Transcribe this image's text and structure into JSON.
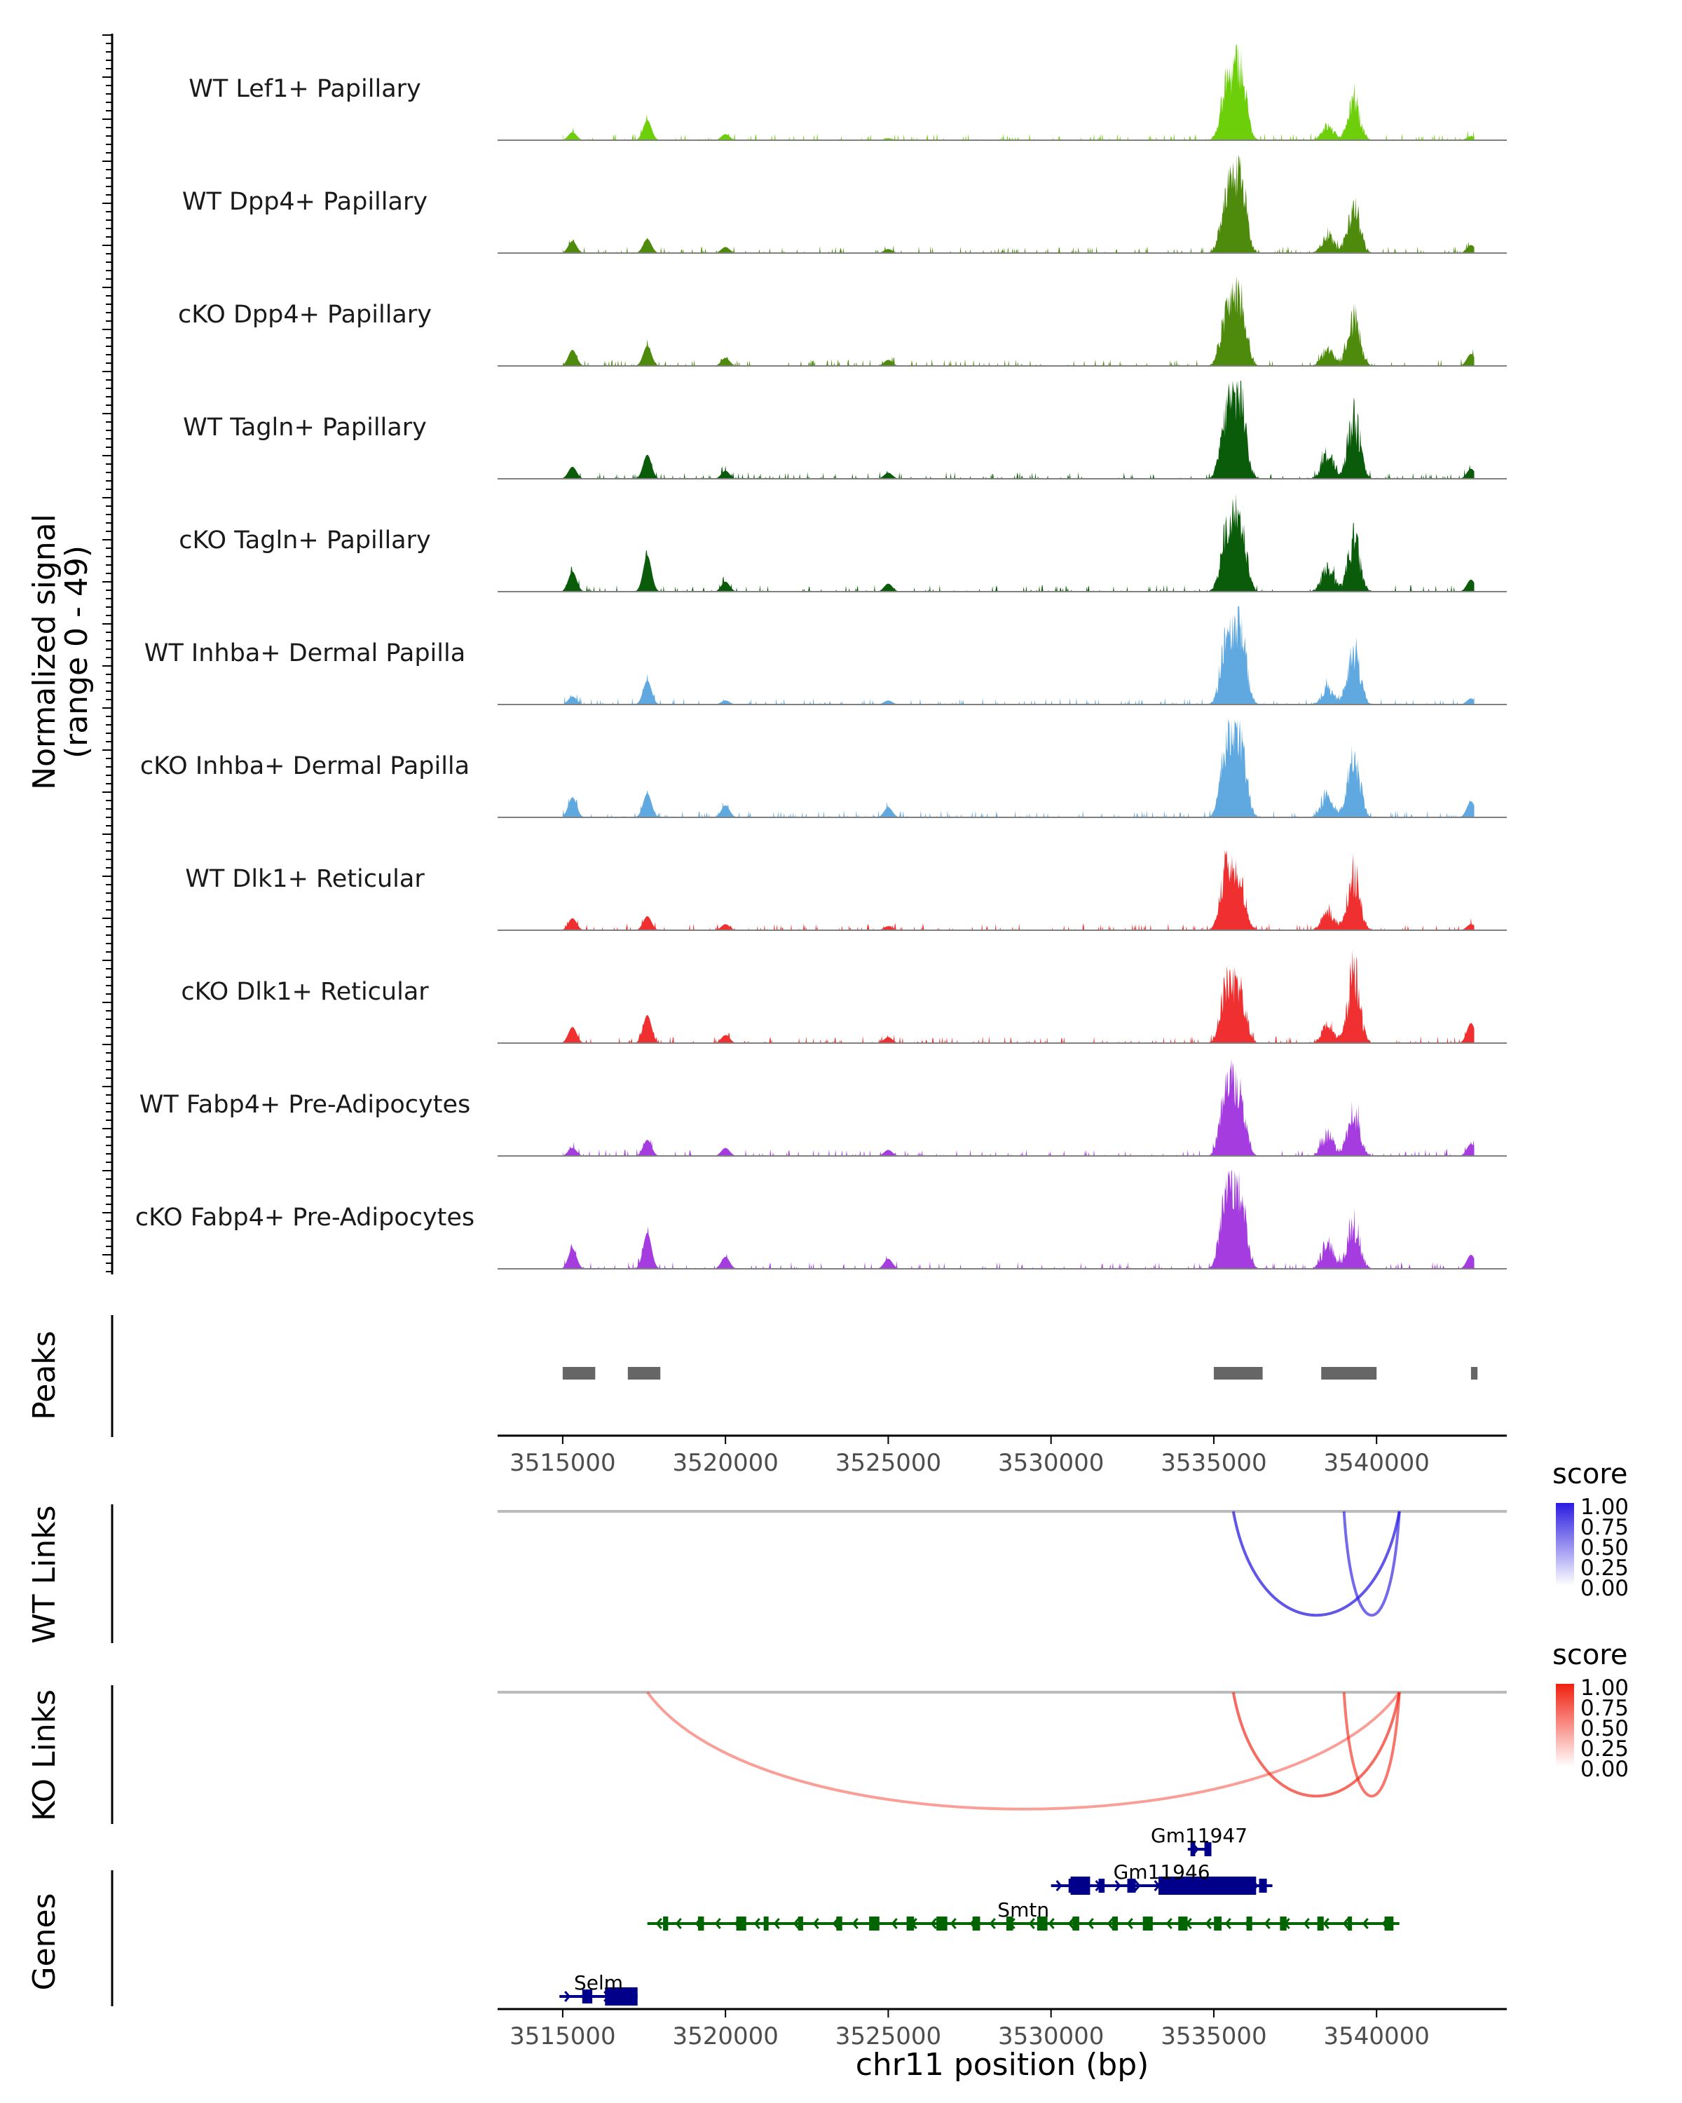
{
  "chart_data": {
    "type": "genome-browser",
    "coverage": {
      "ylabel": "Normalized signal",
      "ylabel_range": "(range 0 - 49)",
      "ylim": [
        0,
        49
      ],
      "x_range": [
        3513000,
        3544000
      ],
      "peak_regions": [
        [
          3515000,
          3516000
        ],
        [
          3517000,
          3518000
        ],
        [
          3535000,
          3536500
        ],
        [
          3538300,
          3540000
        ],
        [
          3542900,
          3543100
        ]
      ],
      "tracks": [
        {
          "label": "WT Lef1+ Papillary",
          "color": "#6ccf0a",
          "peak_heights": [
            4,
            10,
            3,
            1,
            30,
            42,
            8,
            22,
            2
          ]
        },
        {
          "label": "WT Dpp4+ Papillary",
          "color": "#4e8a0c",
          "peak_heights": [
            6,
            7,
            3,
            2,
            32,
            46,
            10,
            28,
            4
          ]
        },
        {
          "label": "cKO Dpp4+ Papillary",
          "color": "#4e8a0c",
          "peak_heights": [
            8,
            10,
            4,
            3,
            30,
            40,
            10,
            28,
            6
          ]
        },
        {
          "label": "WT Tagln+ Papillary",
          "color": "#0a5c0a",
          "peak_heights": [
            6,
            12,
            4,
            3,
            38,
            47,
            14,
            36,
            5
          ]
        },
        {
          "label": "cKO Tagln+ Papillary",
          "color": "#0a5c0a",
          "peak_heights": [
            10,
            18,
            5,
            4,
            34,
            44,
            14,
            30,
            6
          ]
        },
        {
          "label": "WT Inhba+ Dermal Papilla",
          "color": "#5fa8e0",
          "peak_heights": [
            4,
            12,
            2,
            2,
            36,
            44,
            10,
            32,
            3
          ]
        },
        {
          "label": "cKO Inhba+ Dermal Papilla",
          "color": "#5fa8e0",
          "peak_heights": [
            10,
            12,
            6,
            5,
            40,
            48,
            14,
            36,
            8
          ]
        },
        {
          "label": "WT Dlk1+ Reticular",
          "color": "#f03030",
          "peak_heights": [
            6,
            7,
            3,
            2,
            36,
            26,
            12,
            32,
            3
          ]
        },
        {
          "label": "cKO Dlk1+ Reticular",
          "color": "#f03030",
          "peak_heights": [
            8,
            14,
            4,
            3,
            32,
            30,
            10,
            40,
            10
          ]
        },
        {
          "label": "WT Fabp4+ Pre-Adipocytes",
          "color": "#a43ce0",
          "peak_heights": [
            4,
            8,
            4,
            3,
            40,
            32,
            12,
            26,
            6
          ]
        },
        {
          "label": "cKO Fabp4+ Pre-Adipocytes",
          "color": "#a43ce0",
          "peak_heights": [
            10,
            18,
            6,
            5,
            48,
            40,
            14,
            26,
            7
          ]
        }
      ]
    },
    "peaks_track": {
      "label": "Peaks",
      "color": "#666666"
    },
    "x_axis": {
      "ticks": [
        3515000,
        3520000,
        3525000,
        3530000,
        3535000,
        3540000
      ],
      "tick_labels": [
        "3515000",
        "3520000",
        "3525000",
        "3530000",
        "3535000",
        "3540000"
      ],
      "xlabel": "chr11 position (bp)"
    },
    "links": [
      {
        "label": "WT Links",
        "legend_title": "score",
        "legend_ticks": [
          "1.00",
          "0.75",
          "0.50",
          "0.25",
          "0.00"
        ],
        "color_high": "#2b1ce0",
        "arcs": [
          {
            "start": 3535600,
            "end": 3540700,
            "score": 0.55,
            "depth": 0.8
          },
          {
            "start": 3539000,
            "end": 3540700,
            "score": 0.45,
            "depth": 0.8
          }
        ]
      },
      {
        "label": "KO Links",
        "legend_title": "score",
        "legend_ticks": [
          "1.00",
          "0.75",
          "0.50",
          "0.25",
          "0.00"
        ],
        "color_high": "#f02010",
        "arcs": [
          {
            "start": 3517600,
            "end": 3540700,
            "score": 0.2,
            "depth": 0.9
          },
          {
            "start": 3535600,
            "end": 3540700,
            "score": 0.45,
            "depth": 0.8
          },
          {
            "start": 3539000,
            "end": 3540700,
            "score": 0.4,
            "depth": 0.8
          }
        ]
      }
    ],
    "genes": {
      "label": "Genes",
      "items": [
        {
          "name": "Gm11947",
          "start": 3534200,
          "end": 3534900,
          "strand": "+",
          "row": 0,
          "color": "#00008b"
        },
        {
          "name": "Gm11946",
          "start": 3530000,
          "end": 3536800,
          "strand": "+",
          "row": 1,
          "color": "#00008b"
        },
        {
          "name": "Smtn",
          "start": 3517600,
          "end": 3540700,
          "strand": "-",
          "row": 2,
          "color": "#006400"
        },
        {
          "name": "Selm",
          "start": 3514900,
          "end": 3517300,
          "strand": "+",
          "row": 3,
          "color": "#00008b"
        }
      ]
    }
  }
}
